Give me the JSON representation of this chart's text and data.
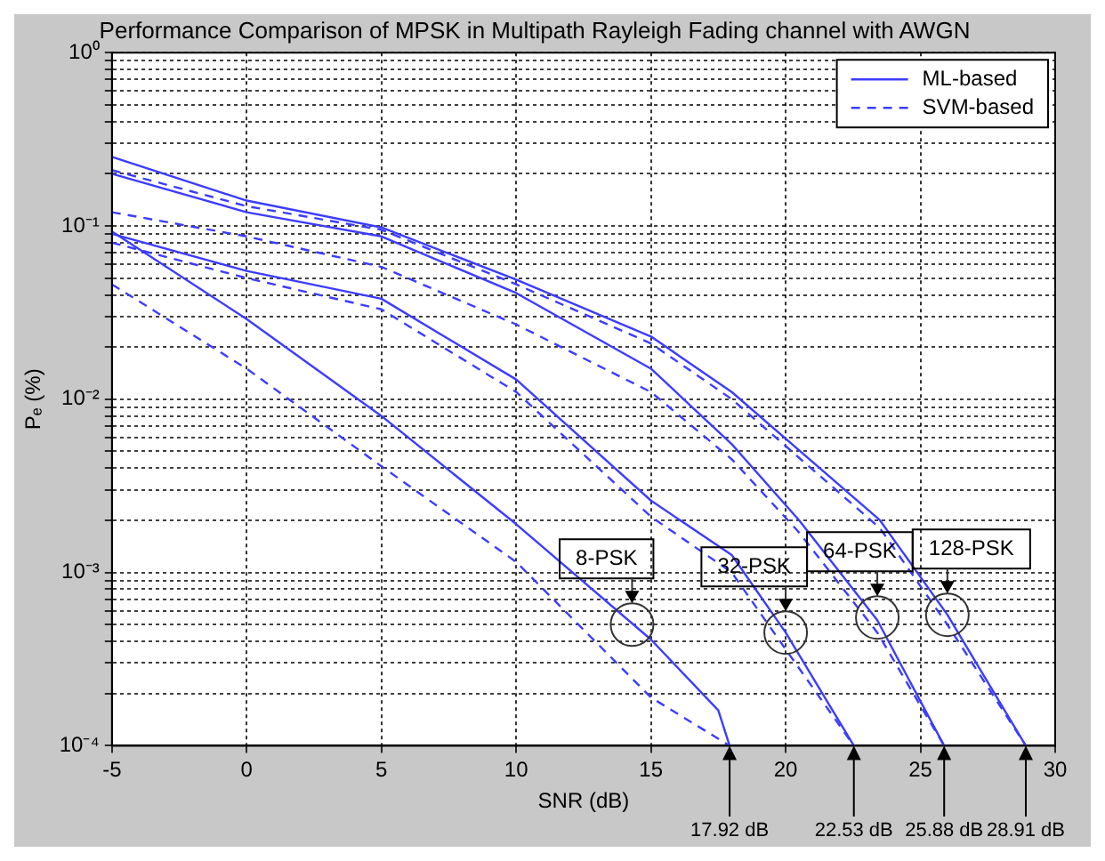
{
  "chart_data": {
    "type": "line",
    "title": "Performance Comparison of MPSK in Multipath Rayleigh Fading channel with AWGN",
    "xlabel": "SNR (dB)",
    "ylabel": "Pₑ (%)",
    "log": "y",
    "grid": true,
    "legend": "top right",
    "marker": "none",
    "xlim": [
      -5,
      30
    ],
    "xticks": [
      -5,
      0,
      5,
      10,
      15,
      20,
      25,
      30
    ],
    "ylim": [
      0.0001,
      1
    ],
    "yticks": [
      {
        "value": 0.0001,
        "label": "10⁻⁴"
      },
      {
        "value": 0.0002,
        "label": null
      },
      {
        "value": 0.0003,
        "label": null
      },
      {
        "value": 0.0004,
        "label": null
      },
      {
        "value": 0.0005,
        "label": null
      },
      {
        "value": 0.0006,
        "label": null
      },
      {
        "value": 0.0007,
        "label": null
      },
      {
        "value": 0.0008,
        "label": null
      },
      {
        "value": 0.0009,
        "label": null
      },
      {
        "value": 0.001,
        "label": "10⁻³"
      },
      {
        "value": 0.002,
        "label": null
      },
      {
        "value": 0.003,
        "label": null
      },
      {
        "value": 0.004,
        "label": null
      },
      {
        "value": 0.005,
        "label": null
      },
      {
        "value": 0.006,
        "label": null
      },
      {
        "value": 0.007,
        "label": null
      },
      {
        "value": 0.008,
        "label": null
      },
      {
        "value": 0.009,
        "label": null
      },
      {
        "value": 0.01,
        "label": "10⁻²"
      },
      {
        "value": 0.02,
        "label": null
      },
      {
        "value": 0.03,
        "label": null
      },
      {
        "value": 0.04,
        "label": null
      },
      {
        "value": 0.05,
        "label": null
      },
      {
        "value": 0.06,
        "label": null
      },
      {
        "value": 0.07,
        "label": null
      },
      {
        "value": 0.08,
        "label": null
      },
      {
        "value": 0.09,
        "label": null
      },
      {
        "value": 0.1,
        "label": "10⁻¹"
      },
      {
        "value": 0.2,
        "label": null
      },
      {
        "value": 0.3,
        "label": null
      },
      {
        "value": 0.4,
        "label": null
      },
      {
        "value": 0.5,
        "label": null
      },
      {
        "value": 0.6,
        "label": null
      },
      {
        "value": 0.7,
        "label": null
      },
      {
        "value": 0.8,
        "label": null
      },
      {
        "value": 0.9,
        "label": null
      },
      {
        "value": 1,
        "label": "10⁰"
      }
    ],
    "series": [
      {
        "name": "ML-based",
        "color": "#3c3cff",
        "line_style": "solid",
        "x": [
          -5,
          0,
          5,
          10,
          15,
          17.5,
          17.92
        ],
        "values": [
          0.093,
          0.029,
          0.008,
          0.0019,
          0.00041,
          0.00016,
          0.0001
        ]
      },
      {
        "name": "SVM-based",
        "color": "#3c3cff",
        "line_style": "dashed",
        "x": [
          -5,
          0,
          5,
          10,
          15,
          17.92
        ],
        "values": [
          0.046,
          0.015,
          0.0041,
          0.00115,
          0.00019,
          0.0001
        ]
      },
      {
        "color": "#3c3cff",
        "line_style": "solid",
        "x": [
          -5,
          0,
          5,
          10,
          15,
          18,
          20,
          22.53
        ],
        "values": [
          0.09,
          0.055,
          0.038,
          0.013,
          0.0026,
          0.00126,
          0.00045,
          0.0001
        ]
      },
      {
        "color": "#3c3cff",
        "line_style": "dashed",
        "x": [
          -5,
          0,
          5,
          10,
          15,
          18,
          20,
          22.53
        ],
        "values": [
          0.08,
          0.05,
          0.033,
          0.011,
          0.0021,
          0.001,
          0.00036,
          0.0001
        ]
      },
      {
        "color": "#3c3cff",
        "line_style": "solid",
        "x": [
          -5,
          0,
          5,
          10,
          15,
          18,
          20.5,
          23.4,
          25.88
        ],
        "values": [
          0.2,
          0.12,
          0.087,
          0.041,
          0.015,
          0.0055,
          0.002,
          0.00053,
          0.0001
        ]
      },
      {
        "color": "#3c3cff",
        "line_style": "dashed",
        "x": [
          -5,
          0,
          5,
          10,
          15,
          18,
          20.5,
          23.4,
          25.88
        ],
        "values": [
          0.12,
          0.087,
          0.058,
          0.027,
          0.011,
          0.0045,
          0.0017,
          0.00045,
          0.0001
        ]
      },
      {
        "color": "#3c3cff",
        "line_style": "solid",
        "x": [
          -5,
          0,
          5,
          10,
          15,
          18,
          23.5,
          26,
          28.91
        ],
        "values": [
          0.25,
          0.14,
          0.098,
          0.049,
          0.023,
          0.011,
          0.002,
          0.00057,
          0.0001
        ]
      },
      {
        "color": "#3c3cff",
        "line_style": "dashed",
        "x": [
          -5,
          0,
          5,
          10,
          15,
          18,
          23.5,
          26,
          28.91
        ],
        "values": [
          0.21,
          0.13,
          0.095,
          0.046,
          0.021,
          0.01,
          0.0018,
          0.0005,
          0.0001
        ]
      }
    ],
    "annotations": [
      {
        "text": "8-PSK",
        "x": 14.3,
        "y": 0.0005
      },
      {
        "text": "32-PSK",
        "x": 20,
        "y": 0.00045
      },
      {
        "text": "64-PSK",
        "x": 23.4,
        "y": 0.00055
      },
      {
        "text": "128-PSK",
        "x": 26,
        "y": 0.00057
      },
      {
        "text": "17.92 dB",
        "x": 17.92,
        "y": 0.0001
      },
      {
        "text": "22.53 dB",
        "x": 22.53,
        "y": 0.0001
      },
      {
        "text": "25.88 dB",
        "x": 25.88,
        "y": 0.0001
      },
      {
        "text": "28.91 dB",
        "x": 28.91,
        "y": 0.0001
      }
    ]
  }
}
